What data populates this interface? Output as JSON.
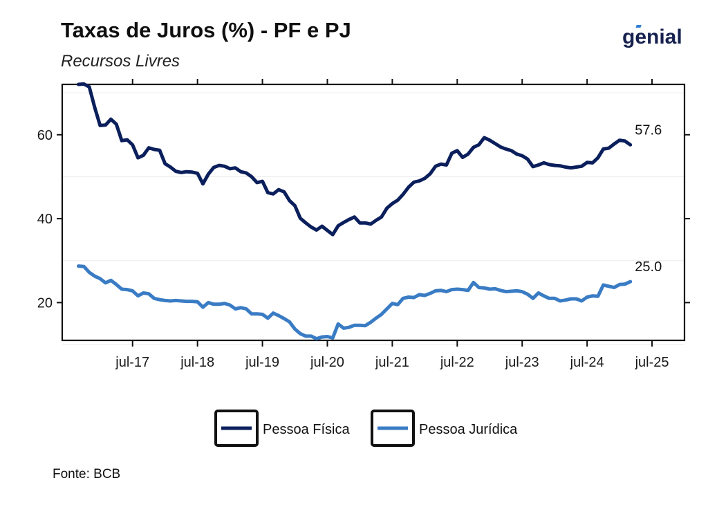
{
  "header": {
    "title": "Taxas de Juros (%) - PF e PJ",
    "subtitle": "Recursos Livres",
    "brand": "genial"
  },
  "footer": {
    "source": "Fonte: BCB"
  },
  "chart_data": {
    "type": "line",
    "title": "Taxas de Juros (%) - PF e PJ",
    "subtitle": "Recursos Livres",
    "x_start": "2016-09",
    "x_end": "2025-06",
    "xlim": [
      "2016-06",
      "2026-01"
    ],
    "ylim": [
      11,
      72
    ],
    "y_ticks": [
      20,
      40,
      60
    ],
    "x_ticks": [
      {
        "date": "2017-07",
        "label": "jul-17"
      },
      {
        "date": "2018-07",
        "label": "jul-18"
      },
      {
        "date": "2019-07",
        "label": "jul-19"
      },
      {
        "date": "2020-07",
        "label": "jul-20"
      },
      {
        "date": "2021-07",
        "label": "jul-21"
      },
      {
        "date": "2022-07",
        "label": "jul-22"
      },
      {
        "date": "2023-07",
        "label": "jul-23"
      },
      {
        "date": "2024-07",
        "label": "jul-24"
      },
      {
        "date": "2025-07",
        "label": "jul-25"
      }
    ],
    "grid": "horizontal-minor",
    "legend_position": "bottom",
    "series": [
      {
        "name": "Pessoa Física",
        "color": "#0b1f5c",
        "end_label": "57.6",
        "values": [
          72,
          72.1,
          71.4,
          66.5,
          62.2,
          62.3,
          63.7,
          62.5,
          58.6,
          58.8,
          57.6,
          54.5,
          55.1,
          56.9,
          56.5,
          56.3,
          53.1,
          52.3,
          51.3,
          51,
          51.2,
          51.1,
          50.8,
          48.3,
          50.6,
          52.2,
          52.7,
          52.5,
          51.9,
          52.1,
          51.2,
          50.9,
          50,
          48.6,
          48.9,
          46.2,
          45.9,
          46.9,
          46.4,
          44.3,
          43.1,
          40.1,
          39,
          38,
          37.3,
          38.2,
          37.2,
          36.2,
          38.3,
          39.1,
          39.8,
          40.4,
          39,
          39,
          38.7,
          39.6,
          40.4,
          42.5,
          43.6,
          44.4,
          45.8,
          47.5,
          48.7,
          49,
          49.6,
          50.7,
          52.5,
          53,
          52.8,
          55.6,
          56.2,
          54.6,
          55.4,
          57,
          57.6,
          59.3,
          58.7,
          57.9,
          57.1,
          56.6,
          56.2,
          55.4,
          55,
          54.2,
          52.4,
          52.8,
          53.3,
          52.9,
          52.7,
          52.6,
          52.3,
          52.1,
          52.3,
          52.5,
          53.4,
          53.3,
          54.5,
          56.6,
          56.8,
          57.8,
          58.7,
          58.5,
          57.6
        ]
      },
      {
        "name": "Pessoa Jurídica",
        "color": "#3a7cc4",
        "end_label": "25.0",
        "values": [
          28.7,
          28.6,
          27.2,
          26.3,
          25.7,
          24.7,
          25.3,
          24.3,
          23.2,
          23.1,
          22.8,
          21.6,
          22.3,
          22.1,
          21,
          20.7,
          20.5,
          20.4,
          20.5,
          20.4,
          20.3,
          20.3,
          20.2,
          18.9,
          20,
          19.6,
          19.6,
          19.8,
          19.4,
          18.5,
          18.8,
          18.5,
          17.3,
          17.3,
          17.2,
          16.3,
          17.5,
          16.9,
          16.2,
          15.4,
          13.7,
          12.6,
          12,
          12,
          11.4,
          11.8,
          11.9,
          11.6,
          14.9,
          13.9,
          14.1,
          14.6,
          14.6,
          14.5,
          15.3,
          16.3,
          17.2,
          18.5,
          19.8,
          19.5,
          21,
          21.3,
          21.2,
          21.9,
          21.7,
          22.2,
          22.8,
          22.9,
          22.6,
          23.1,
          23.2,
          23.1,
          22.9,
          24.8,
          23.6,
          23.5,
          23.2,
          23.3,
          22.9,
          22.6,
          22.7,
          22.8,
          22.6,
          22,
          21,
          22.3,
          21.6,
          21,
          21,
          20.4,
          20.6,
          20.9,
          20.9,
          20.4,
          21.3,
          21.6,
          21.5,
          24.2,
          23.9,
          23.6,
          24.3,
          24.4,
          25
        ]
      }
    ]
  }
}
